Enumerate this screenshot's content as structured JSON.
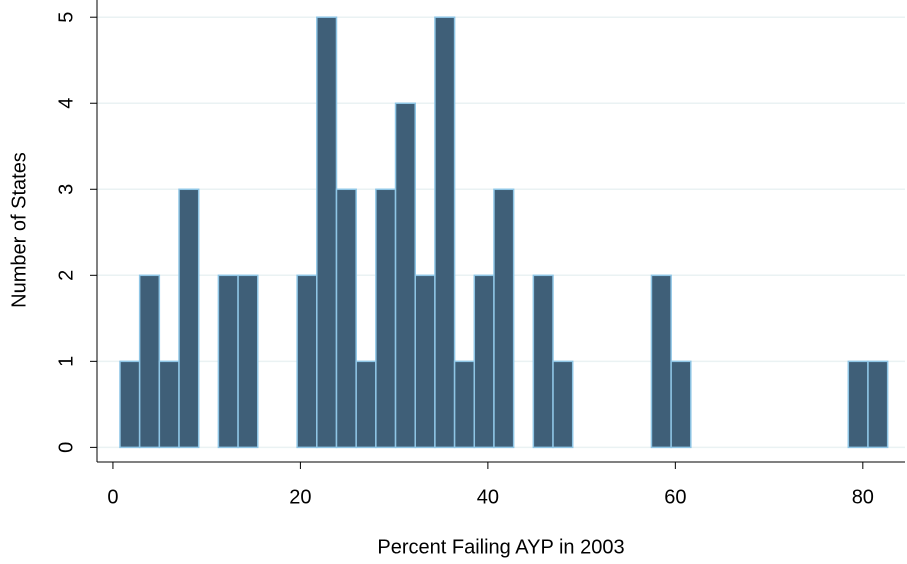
{
  "chart_data": {
    "type": "histogram",
    "x_label": "Percent Failing AYP in 2003",
    "y_label": "Number of States",
    "bins": [
      0.75,
      2.85,
      4.95,
      7.05,
      9.15,
      11.25,
      13.35,
      15.45,
      17.55,
      19.65,
      21.75,
      23.85,
      25.95,
      28.05,
      30.15,
      32.25,
      34.35,
      36.45,
      38.55,
      40.65,
      42.75,
      44.85,
      46.95,
      49.05,
      51.15,
      53.25,
      55.35,
      57.45,
      59.55,
      61.65,
      63.75,
      65.85,
      67.95,
      70.05,
      72.15,
      74.25,
      76.35,
      78.45,
      80.55,
      82.65
    ],
    "counts": [
      1,
      2,
      1,
      3,
      0,
      2,
      2,
      0,
      0,
      2,
      5,
      3,
      1,
      3,
      4,
      2,
      5,
      1,
      2,
      3,
      0,
      2,
      1,
      0,
      0,
      0,
      0,
      2,
      1,
      0,
      0,
      0,
      0,
      0,
      0,
      0,
      0,
      1,
      1
    ],
    "color": "#3f5f78",
    "edge_color": "#8fc6e6",
    "xlim": [
      -1.7,
      84.5
    ],
    "ylim": [
      -0.17,
      5.2
    ],
    "xticks": [
      0,
      20,
      40,
      60,
      80
    ],
    "yticks": [
      0,
      1,
      2,
      3,
      4,
      5
    ],
    "grid": true
  }
}
